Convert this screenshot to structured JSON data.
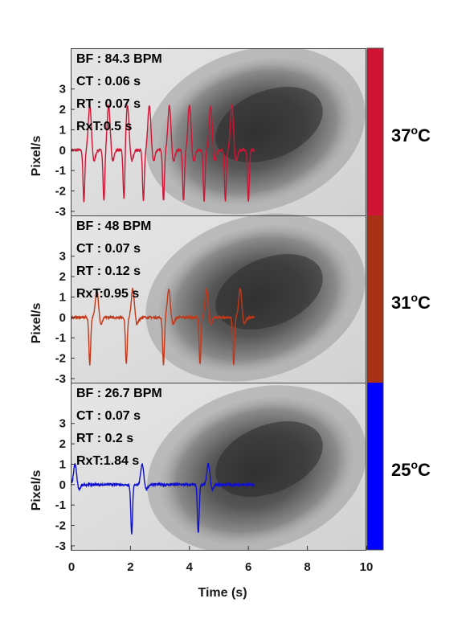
{
  "chart_data": {
    "type": "line",
    "xlabel": "Time (s)",
    "xlim": [
      0,
      10
    ],
    "xticks": [
      "0",
      "2",
      "4",
      "6",
      "8",
      "10"
    ],
    "panels": [
      {
        "temperature": "37",
        "temp_unit": "C",
        "color": "#d01434",
        "ylabel": "Pixel/s",
        "ylim": [
          -3.2,
          5.0
        ],
        "yticks": [
          "-3",
          "-2",
          "-1",
          "0",
          "1",
          "2",
          "3"
        ],
        "annotations": [
          "BF : 84.3 BPM",
          "CT : 0.06 s",
          "RT : 0.07 s",
          "RxT:0.5 s"
        ],
        "spike_times": [
          0.62,
          1.26,
          1.9,
          2.64,
          3.32,
          4.0,
          4.72,
          5.44
        ],
        "min_times": [
          0.42,
          1.1,
          1.78,
          2.44,
          3.12,
          3.8,
          4.5,
          5.22,
          6.0
        ],
        "peak": 2.2,
        "trough": -2.5,
        "x_end": 6.2
      },
      {
        "temperature": "31",
        "temp_unit": "C",
        "color": "#c0391b",
        "ylabel": "Pixel/s",
        "ylim": [
          -3.2,
          5.0
        ],
        "yticks": [
          "-3",
          "-2",
          "-1",
          "0",
          "1",
          "2",
          "3"
        ],
        "annotations": [
          "BF : 48 BPM",
          "CT : 0.07 s",
          "RT : 0.12 s",
          "RxT:0.95 s"
        ],
        "spike_times": [
          0.86,
          2.08,
          3.3,
          4.58,
          5.72
        ],
        "min_times": [
          0.62,
          1.86,
          3.12,
          4.36,
          5.5
        ],
        "peak": 1.4,
        "trough": -2.3,
        "x_end": 6.2
      },
      {
        "temperature": "25",
        "temp_unit": "C",
        "color": "#1010d0",
        "ylabel": "Pixel/s",
        "ylim": [
          -3.2,
          5.0
        ],
        "yticks": [
          "-3",
          "-2",
          "-1",
          "0",
          "1",
          "2",
          "3"
        ],
        "annotations": [
          "BF : 26.7 BPM",
          "CT : 0.07 s",
          "RT : 0.2 s",
          "RxT:1.84 s"
        ],
        "spike_times": [
          0.12,
          2.4,
          4.64
        ],
        "min_times": [
          2.04,
          4.3
        ],
        "peak": 1.0,
        "trough": -2.4,
        "x_end": 6.2
      }
    ],
    "colorbar": [
      "#d01434",
      "#a93216",
      "#0000ff"
    ]
  }
}
